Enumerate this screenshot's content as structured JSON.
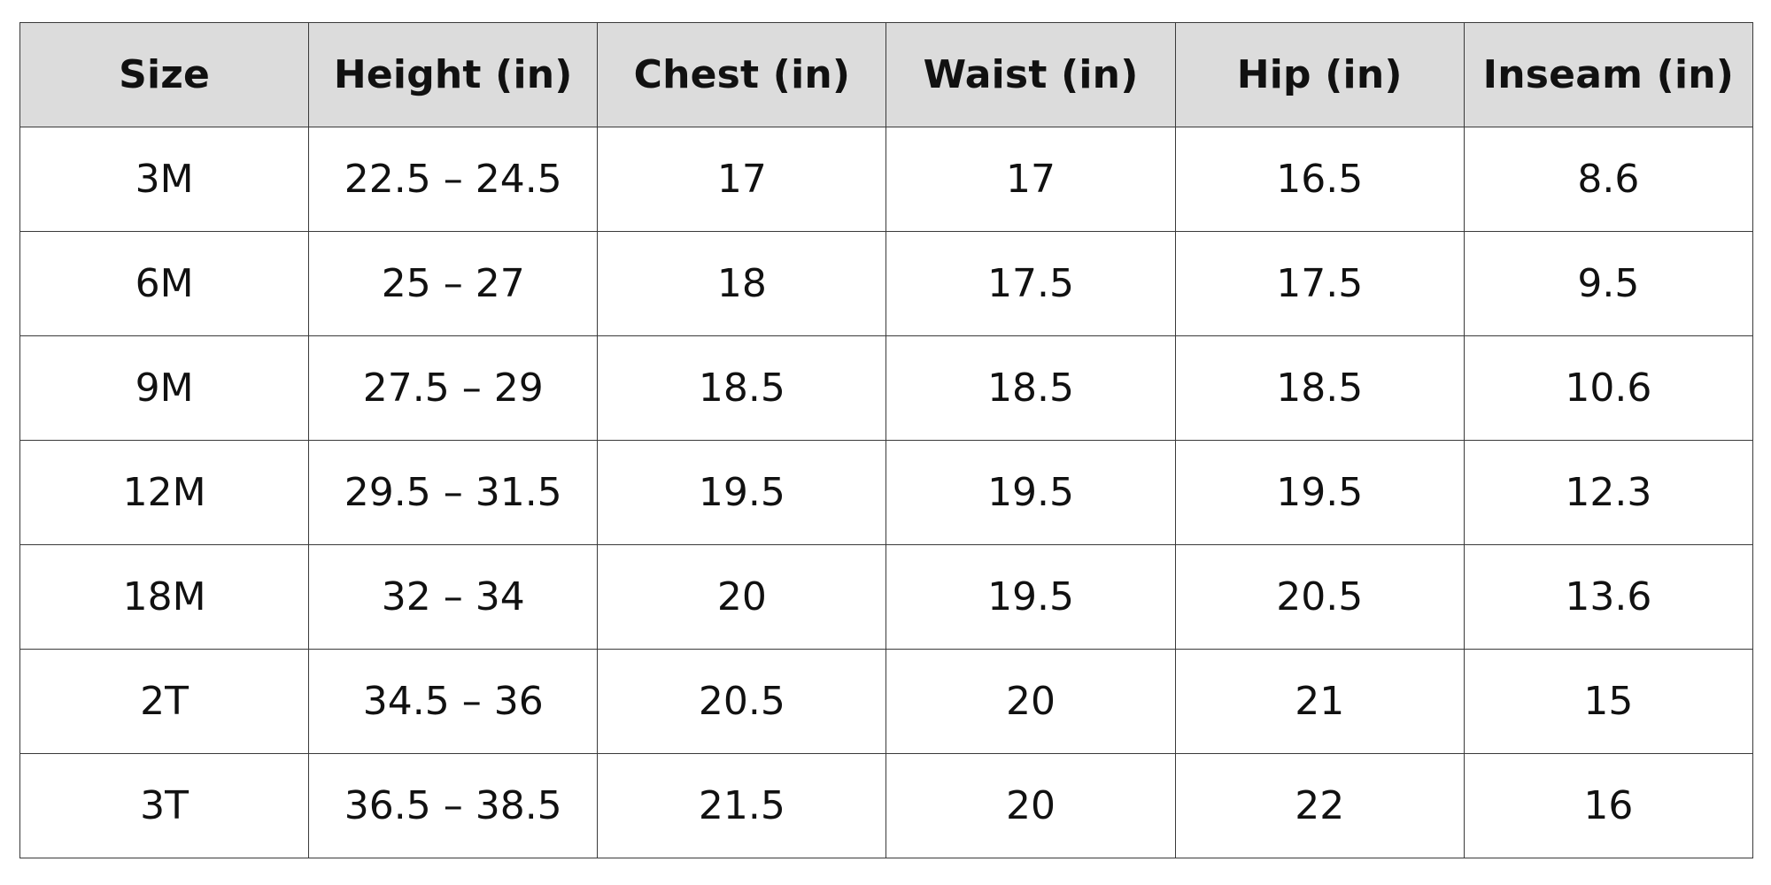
{
  "table": {
    "headers": [
      "Size",
      "Height (in)",
      "Chest (in)",
      "Waist (in)",
      "Hip (in)",
      "Inseam (in)"
    ],
    "rows": [
      [
        "3M",
        "22.5 – 24.5",
        "17",
        "17",
        "16.5",
        "8.6"
      ],
      [
        "6M",
        "25 – 27",
        "18",
        "17.5",
        "17.5",
        "9.5"
      ],
      [
        "9M",
        "27.5 – 29",
        "18.5",
        "18.5",
        "18.5",
        "10.6"
      ],
      [
        "12M",
        "29.5 – 31.5",
        "19.5",
        "19.5",
        "19.5",
        "12.3"
      ],
      [
        "18M",
        "32 – 34",
        "20",
        "19.5",
        "20.5",
        "13.6"
      ],
      [
        "2T",
        "34.5 – 36",
        "20.5",
        "20",
        "21",
        "15"
      ],
      [
        "3T",
        "36.5 – 38.5",
        "21.5",
        "20",
        "22",
        "16"
      ]
    ]
  },
  "colors": {
    "header_background": "#dcdcdc",
    "border": "#3a3a3a",
    "text": "#111111"
  }
}
